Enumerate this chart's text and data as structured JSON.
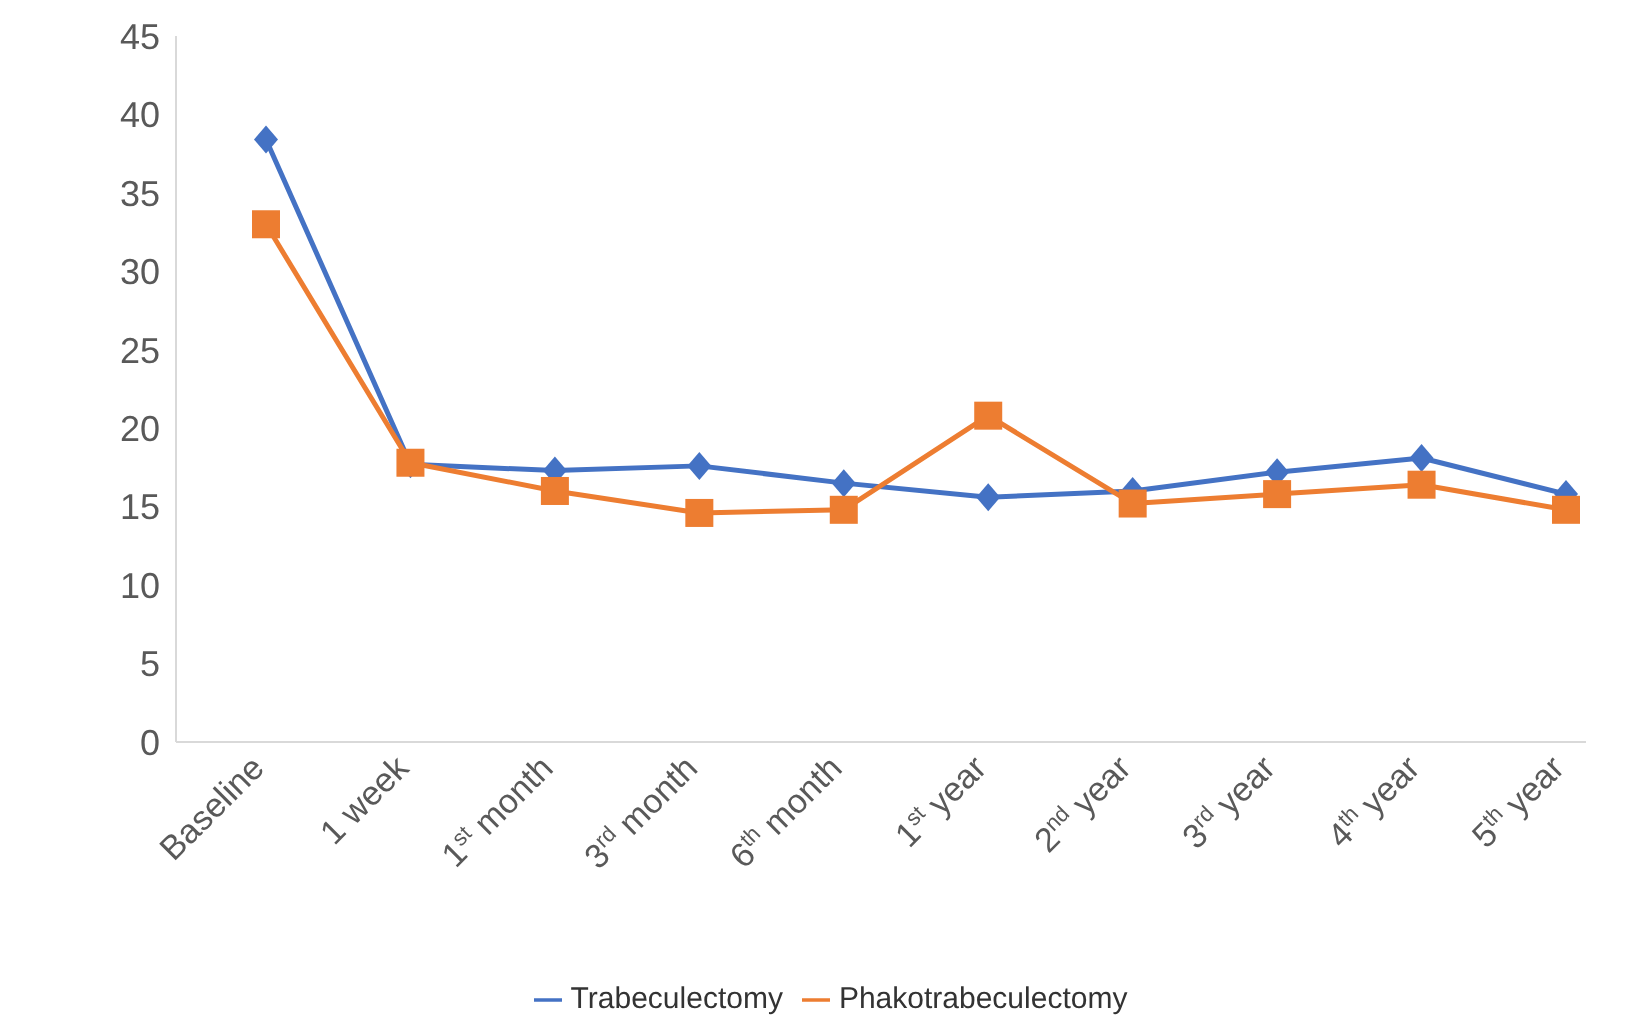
{
  "chart_data": {
    "type": "line",
    "categories": [
      "Baseline",
      "1 week",
      "1$^{st}$ month",
      "3$^{rd}$ month",
      "6$^{th}$ month",
      "1$^{st}$ year",
      "2$^{nd}$ year",
      "3$^{rd}$ year",
      "4$^{th}$ year",
      "5$^{th}$ year"
    ],
    "series": [
      {
        "name": "Trabeculectomy",
        "color": "#4472c4",
        "marker": "diamond",
        "values": [
          38.4,
          17.7,
          17.3,
          17.6,
          16.5,
          15.6,
          16.0,
          17.2,
          18.1,
          15.8
        ]
      },
      {
        "name": "Phakotrabeculectomy",
        "color": "#ed7d31",
        "marker": "square",
        "values": [
          33.0,
          17.8,
          16.0,
          14.6,
          14.8,
          20.8,
          15.2,
          15.8,
          16.4,
          14.8
        ]
      }
    ],
    "ylim": [
      0,
      45
    ],
    "yticks": [
      0,
      5,
      10,
      15,
      20,
      25,
      30,
      35,
      40,
      45
    ],
    "grid": false,
    "legend": "bottom"
  }
}
